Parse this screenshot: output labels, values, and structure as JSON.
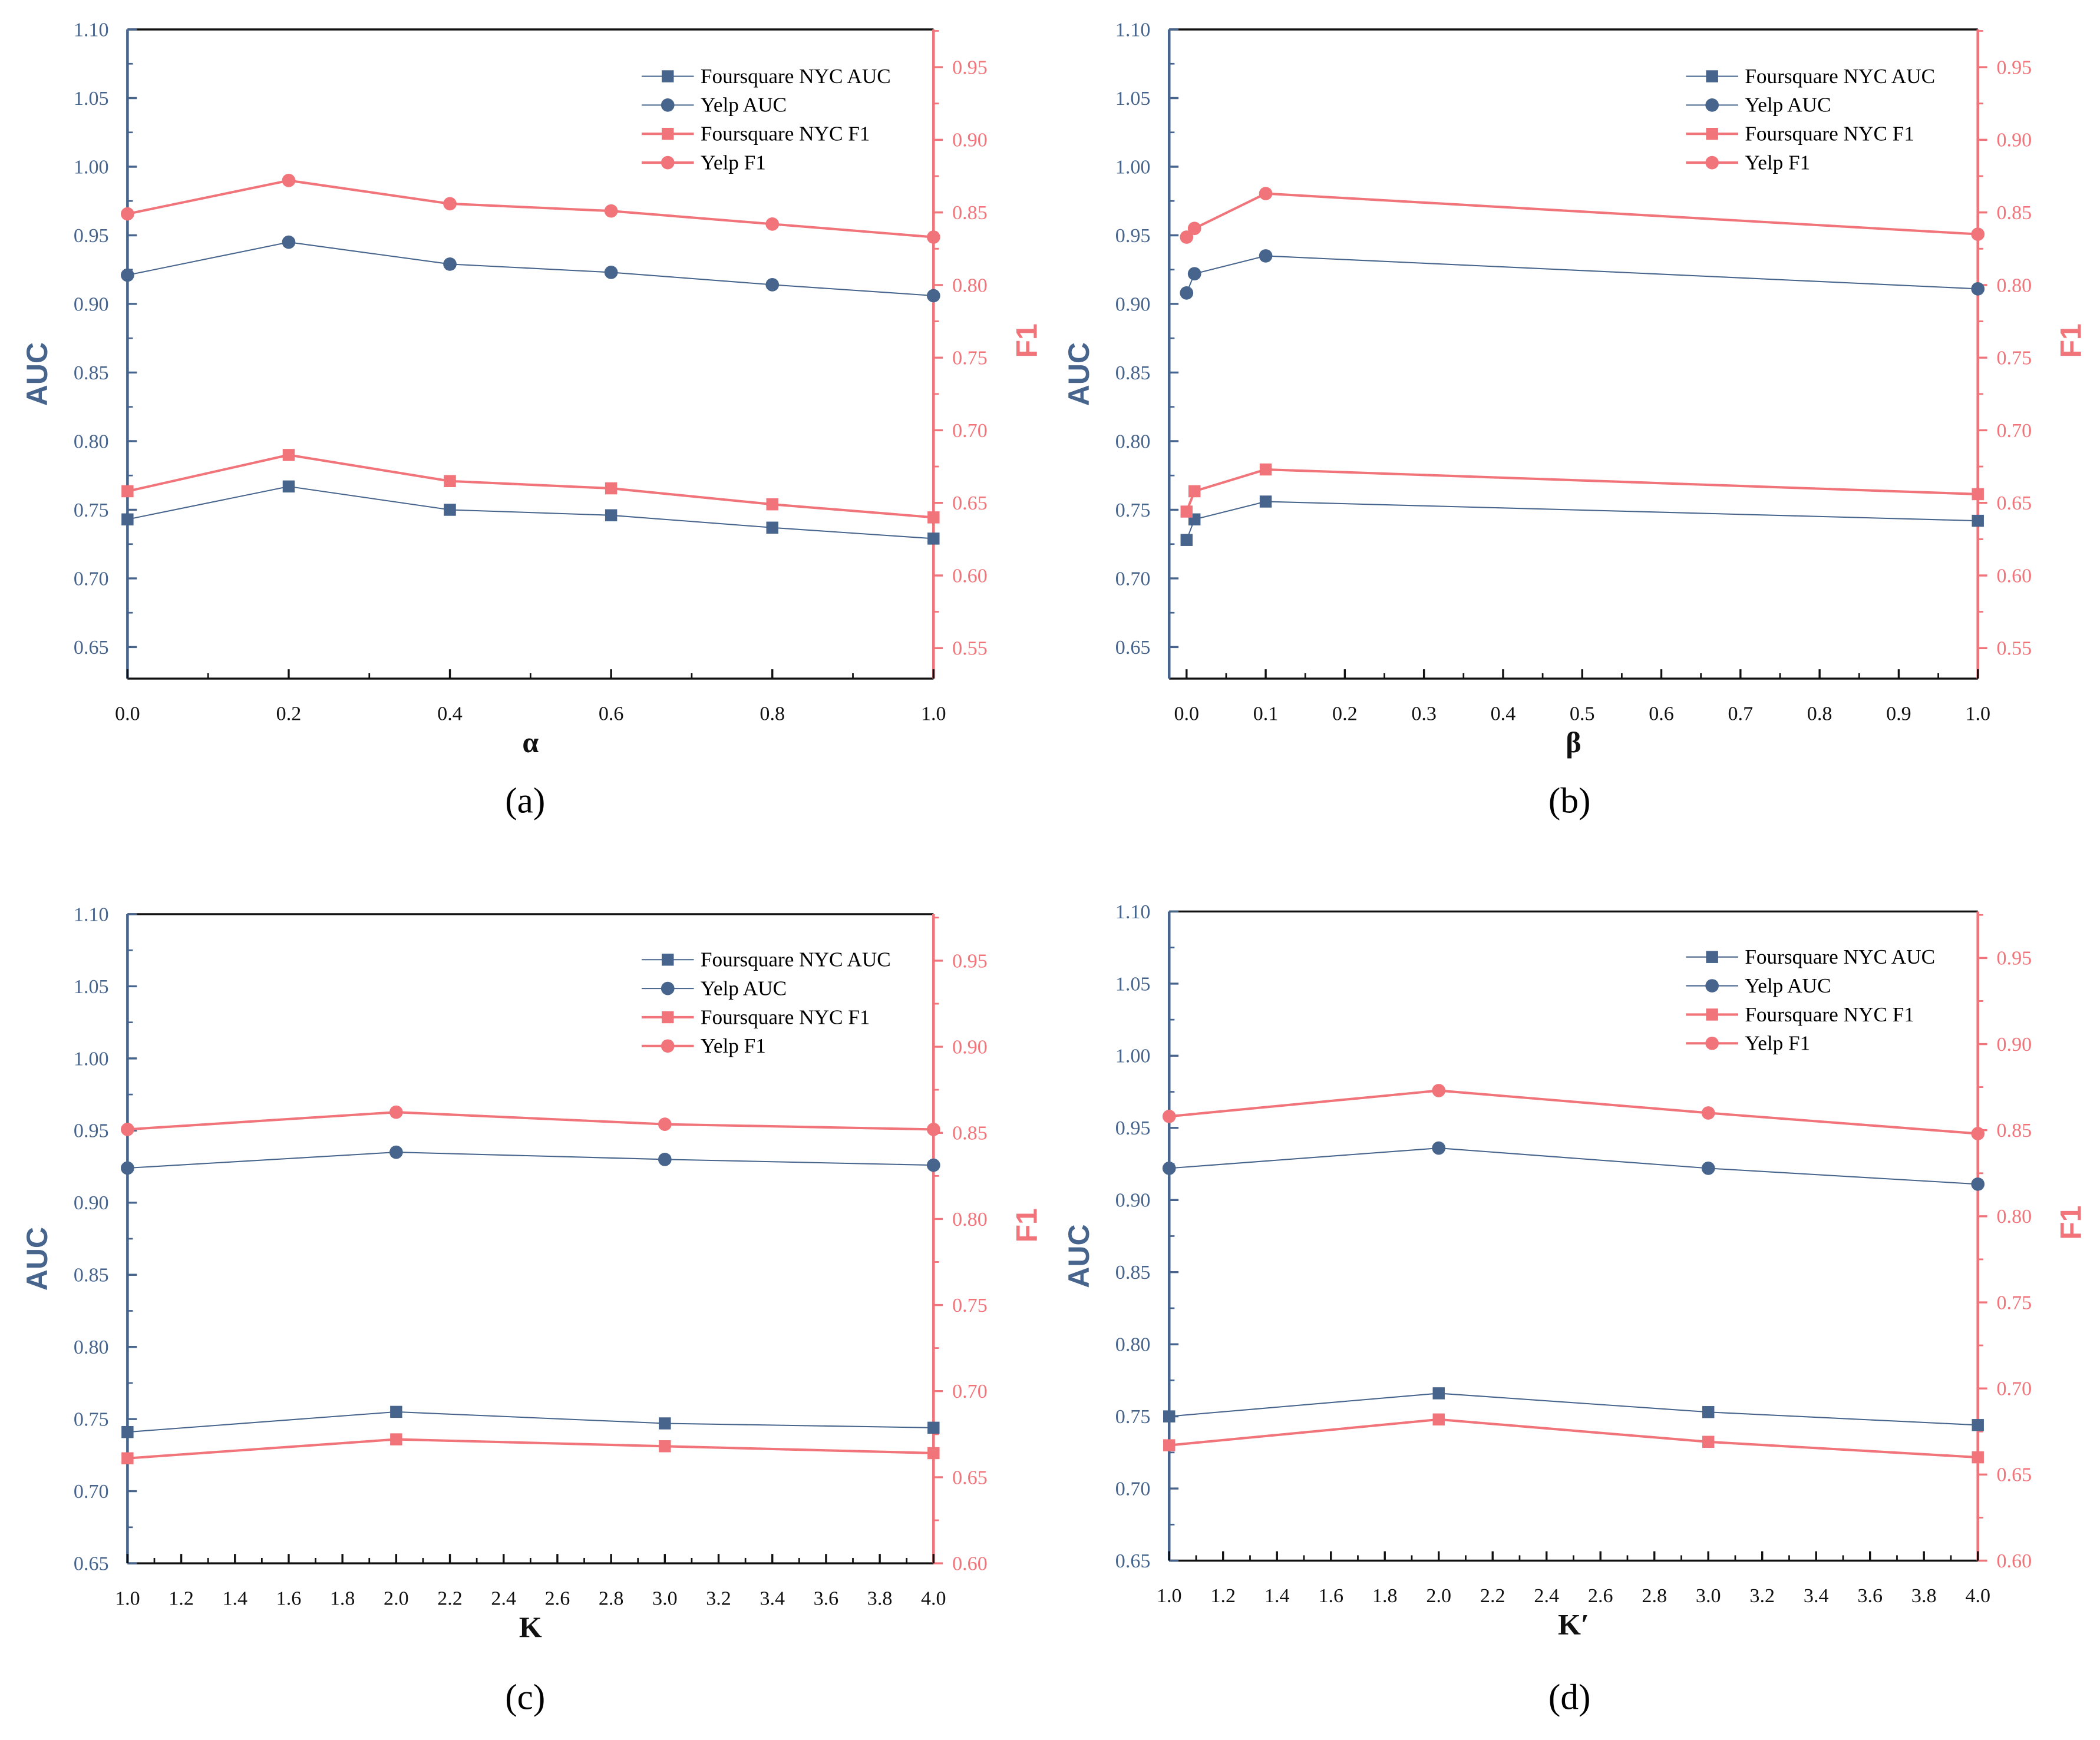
{
  "colors": {
    "auc": "#46648c",
    "f1": "#f07479"
  },
  "chart_data": [
    {
      "type": "line",
      "caption": "(a)",
      "xlabel": "α",
      "ylabel_left": "AUC",
      "ylabel_right": "F1",
      "xlim": [
        0,
        1.0
      ],
      "ylim_left": [
        0.627,
        1.1
      ],
      "ylim_right": [
        0.529,
        0.976
      ],
      "xticks": [
        "0.0",
        "0.2",
        "0.4",
        "0.6",
        "0.8",
        "1.0"
      ],
      "xminor": 0.1,
      "yticks_left": [
        "0.65",
        "0.70",
        "0.75",
        "0.80",
        "0.85",
        "0.90",
        "0.95",
        "1.00",
        "1.05",
        "1.10"
      ],
      "yticks_right": [
        "0.55",
        "0.60",
        "0.65",
        "0.70",
        "0.75",
        "0.80",
        "0.85",
        "0.90",
        "0.95"
      ],
      "legend": "top-right",
      "x": [
        0.0,
        0.2,
        0.4,
        0.6,
        0.8,
        1.0
      ],
      "series": [
        {
          "name": "Foursquare NYC AUC",
          "axis": "left",
          "marker": "square",
          "values": [
            0.743,
            0.767,
            0.75,
            0.746,
            0.737,
            0.729
          ]
        },
        {
          "name": "Yelp AUC",
          "axis": "left",
          "marker": "circle",
          "values": [
            0.921,
            0.945,
            0.929,
            0.923,
            0.914,
            0.906
          ]
        },
        {
          "name": "Foursquare NYC F1",
          "axis": "right",
          "marker": "square",
          "values": [
            0.658,
            0.683,
            0.665,
            0.66,
            0.649,
            0.64
          ]
        },
        {
          "name": "Yelp F1",
          "axis": "right",
          "marker": "circle",
          "values": [
            0.849,
            0.872,
            0.856,
            0.851,
            0.842,
            0.833
          ]
        }
      ]
    },
    {
      "type": "line",
      "caption": "(b)",
      "xlabel": "β",
      "ylabel_left": "AUC",
      "ylabel_right": "F1",
      "xlim": [
        -0.022,
        1.0
      ],
      "ylim_left": [
        0.627,
        1.1
      ],
      "ylim_right": [
        0.529,
        0.976
      ],
      "xticks": [
        "0.0",
        "0.1",
        "0.2",
        "0.3",
        "0.4",
        "0.5",
        "0.6",
        "0.7",
        "0.8",
        "0.9",
        "1.0"
      ],
      "xminor": 0.05,
      "yticks_left": [
        "0.65",
        "0.70",
        "0.75",
        "0.80",
        "0.85",
        "0.90",
        "0.95",
        "1.00",
        "1.05",
        "1.10"
      ],
      "yticks_right": [
        "0.55",
        "0.60",
        "0.65",
        "0.70",
        "0.75",
        "0.80",
        "0.85",
        "0.90",
        "0.95"
      ],
      "legend": "top-right",
      "x": [
        0.0,
        0.01,
        0.1,
        1.0
      ],
      "series": [
        {
          "name": "Foursquare NYC AUC",
          "axis": "left",
          "marker": "square",
          "values": [
            0.728,
            0.743,
            0.756,
            0.742
          ]
        },
        {
          "name": "Yelp AUC",
          "axis": "left",
          "marker": "circle",
          "values": [
            0.908,
            0.922,
            0.935,
            0.911
          ]
        },
        {
          "name": "Foursquare NYC F1",
          "axis": "right",
          "marker": "square",
          "values": [
            0.644,
            0.658,
            0.673,
            0.656
          ]
        },
        {
          "name": "Yelp F1",
          "axis": "right",
          "marker": "circle",
          "values": [
            0.833,
            0.839,
            0.863,
            0.835
          ]
        }
      ]
    },
    {
      "type": "line",
      "caption": "(c)",
      "xlabel": "K",
      "ylabel_left": "AUC",
      "ylabel_right": "F1",
      "xlim": [
        1.0,
        4.0
      ],
      "ylim_left": [
        0.65,
        1.1
      ],
      "ylim_right": [
        0.6,
        0.977
      ],
      "xticks": [
        "1.0",
        "1.2",
        "1.4",
        "1.6",
        "1.8",
        "2.0",
        "2.2",
        "2.4",
        "2.6",
        "2.8",
        "3.0",
        "3.2",
        "3.4",
        "3.6",
        "3.8",
        "4.0"
      ],
      "xminor": 0.1,
      "yticks_left": [
        "0.65",
        "0.70",
        "0.75",
        "0.80",
        "0.85",
        "0.90",
        "0.95",
        "1.00",
        "1.05",
        "1.10"
      ],
      "yticks_right": [
        "0.60",
        "0.65",
        "0.70",
        "0.75",
        "0.80",
        "0.85",
        "0.90",
        "0.95"
      ],
      "legend": "top-right",
      "x": [
        1,
        2,
        3,
        4
      ],
      "series": [
        {
          "name": "Foursquare NYC AUC",
          "axis": "left",
          "marker": "square",
          "values": [
            0.741,
            0.755,
            0.747,
            0.744
          ]
        },
        {
          "name": "Yelp AUC",
          "axis": "left",
          "marker": "circle",
          "values": [
            0.924,
            0.935,
            0.93,
            0.926
          ]
        },
        {
          "name": "Foursquare NYC F1",
          "axis": "right",
          "marker": "square",
          "values": [
            0.661,
            0.672,
            0.668,
            0.664
          ]
        },
        {
          "name": "Yelp F1",
          "axis": "right",
          "marker": "circle",
          "values": [
            0.852,
            0.862,
            0.855,
            0.852
          ]
        }
      ]
    },
    {
      "type": "line",
      "caption": "(d)",
      "xlabel": "K′",
      "ylabel_left": "AUC",
      "ylabel_right": "F1",
      "xlim": [
        1.0,
        4.0
      ],
      "ylim_left": [
        0.65,
        1.1
      ],
      "ylim_right": [
        0.6,
        0.977
      ],
      "xticks": [
        "1.0",
        "1.2",
        "1.4",
        "1.6",
        "1.8",
        "2.0",
        "2.2",
        "2.4",
        "2.6",
        "2.8",
        "3.0",
        "3.2",
        "3.4",
        "3.6",
        "3.8",
        "4.0"
      ],
      "xminor": 0.1,
      "yticks_left": [
        "0.65",
        "0.70",
        "0.75",
        "0.80",
        "0.85",
        "0.90",
        "0.95",
        "1.00",
        "1.05",
        "1.10"
      ],
      "yticks_right": [
        "0.60",
        "0.65",
        "0.70",
        "0.75",
        "0.80",
        "0.85",
        "0.90",
        "0.95"
      ],
      "legend": "top-right",
      "x": [
        1,
        2,
        3,
        4
      ],
      "series": [
        {
          "name": "Foursquare NYC AUC",
          "axis": "left",
          "marker": "square",
          "values": [
            0.75,
            0.766,
            0.753,
            0.744
          ]
        },
        {
          "name": "Yelp AUC",
          "axis": "left",
          "marker": "circle",
          "values": [
            0.922,
            0.936,
            0.922,
            0.911
          ]
        },
        {
          "name": "Foursquare NYC F1",
          "axis": "right",
          "marker": "square",
          "values": [
            0.667,
            0.682,
            0.669,
            0.66
          ]
        },
        {
          "name": "Yelp F1",
          "axis": "right",
          "marker": "circle",
          "values": [
            0.858,
            0.873,
            0.86,
            0.848
          ]
        }
      ]
    }
  ]
}
